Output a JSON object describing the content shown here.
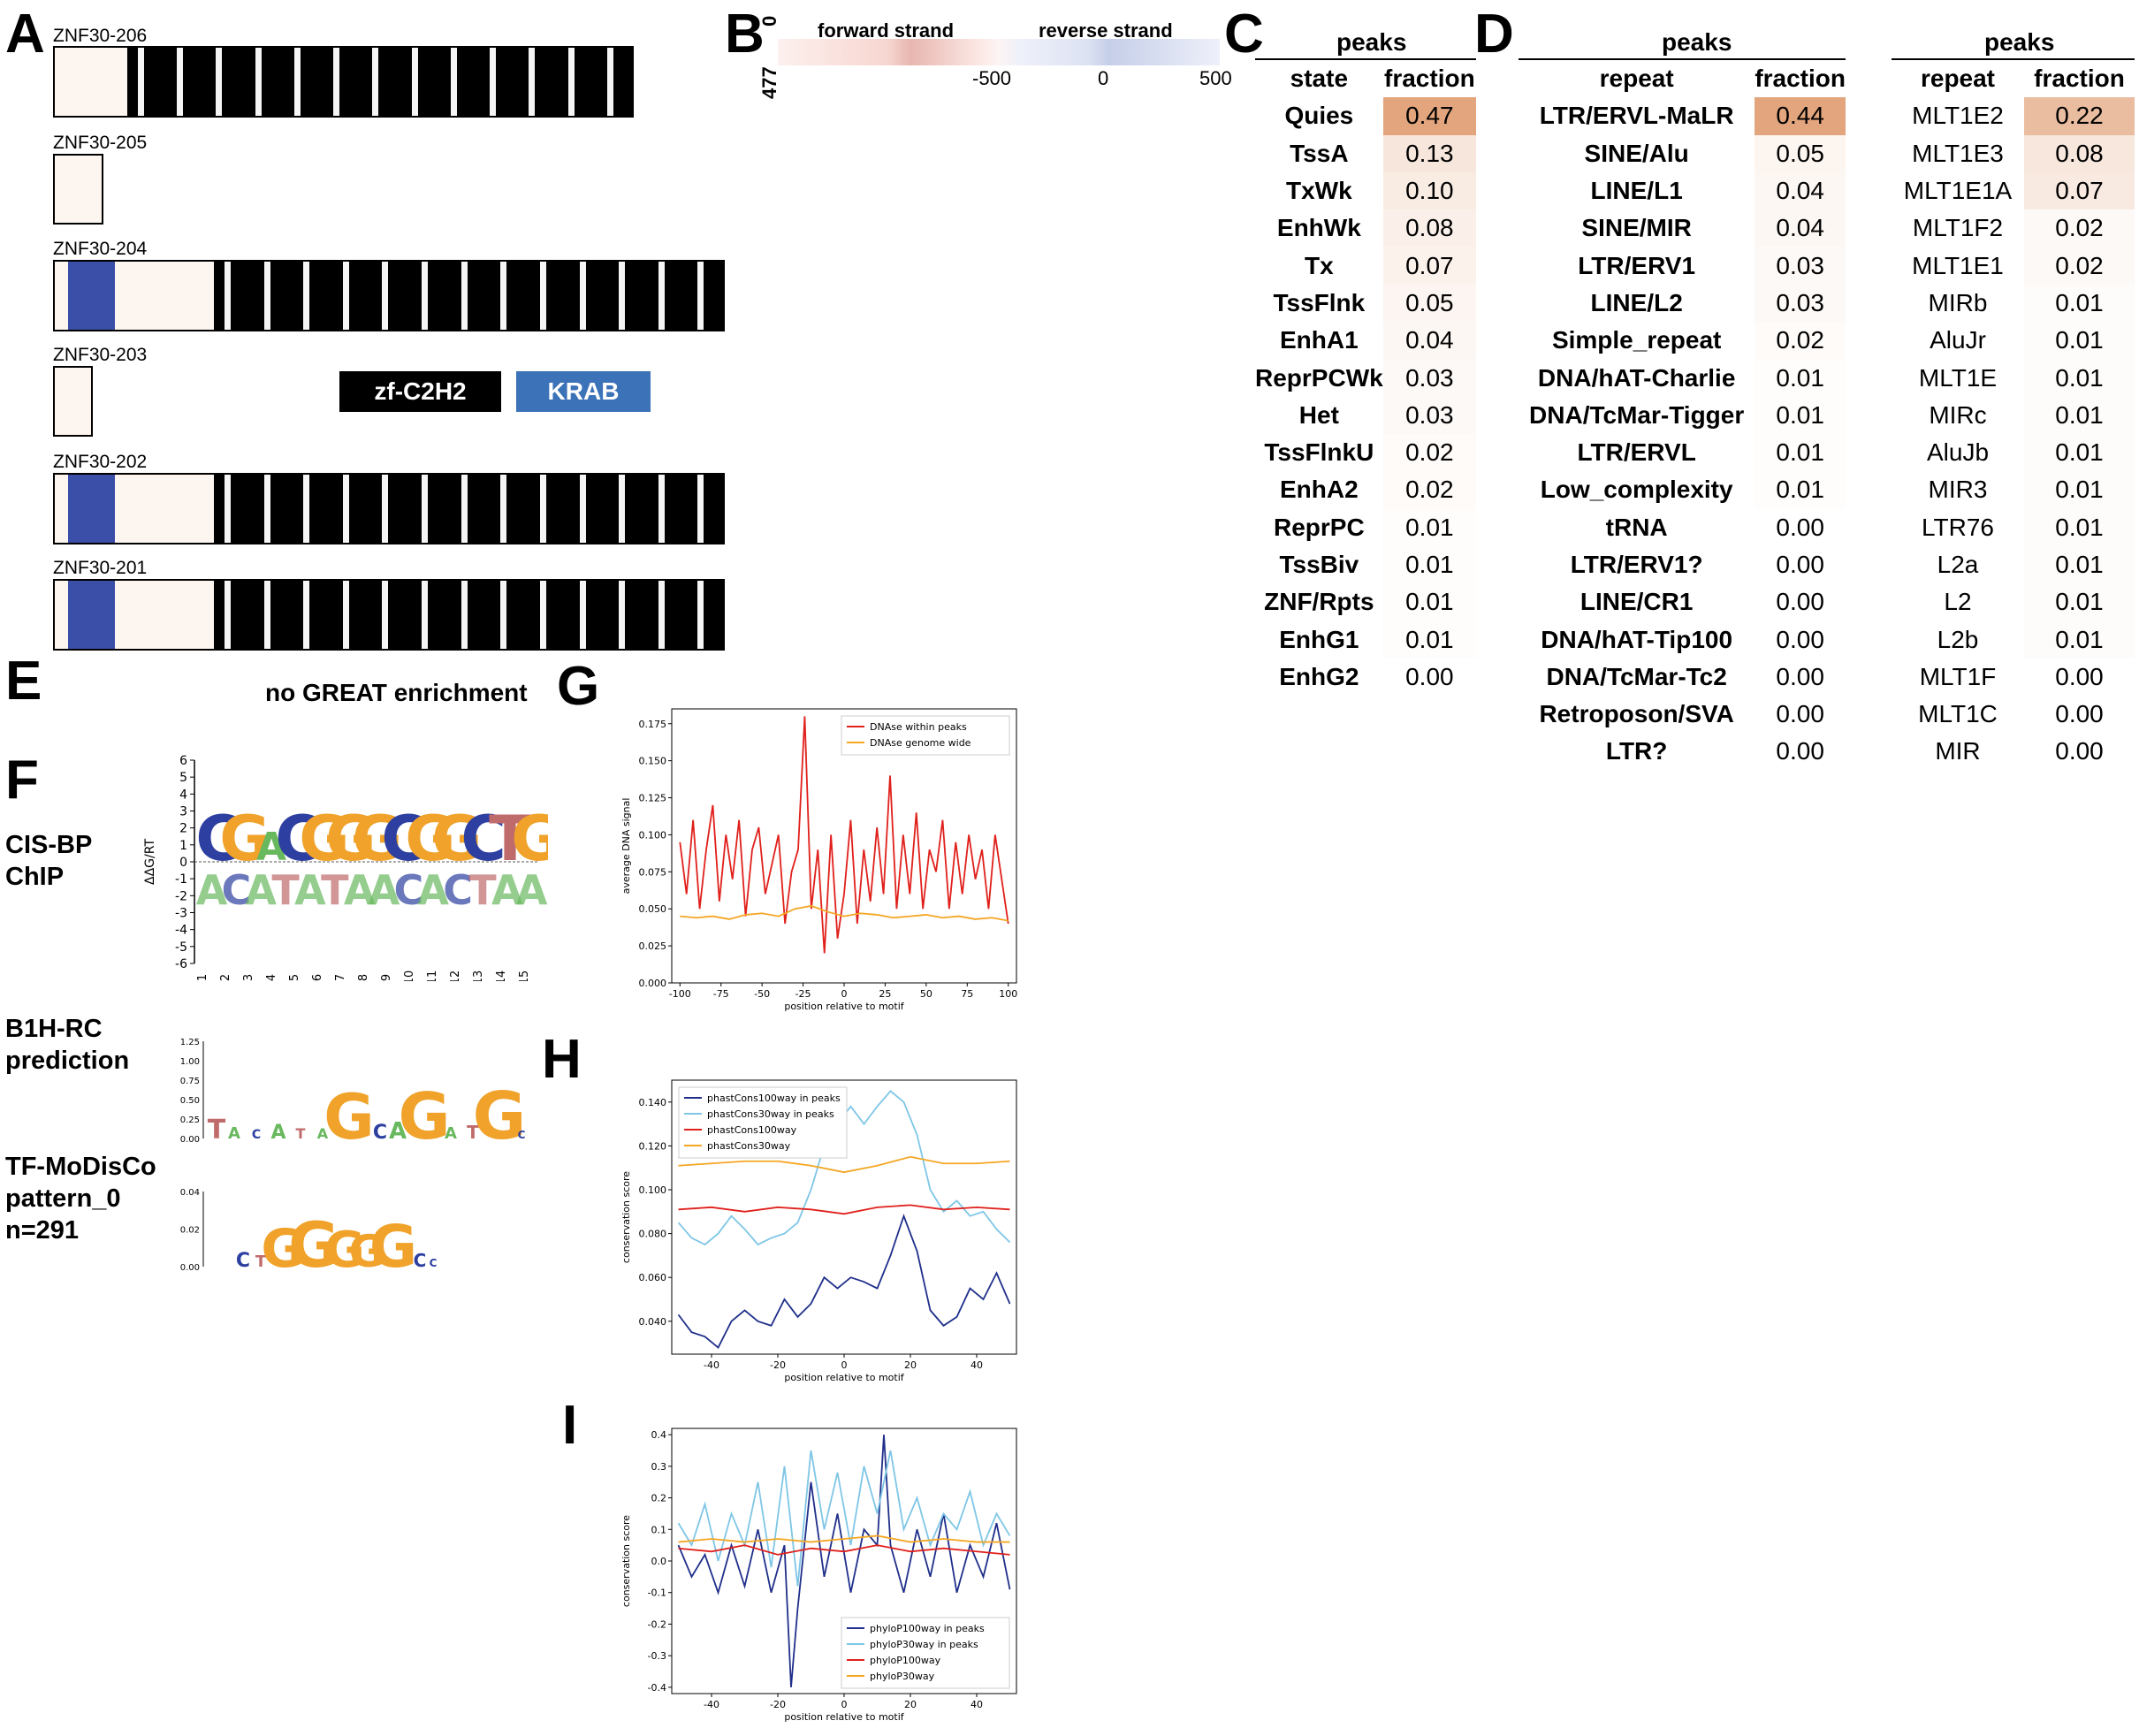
{
  "panel_labels": {
    "A": "A",
    "B": "B",
    "C": "C",
    "D": "D",
    "E": "E",
    "F": "F",
    "G": "G",
    "H": "H",
    "I": "I"
  },
  "isoforms": [
    {
      "name": "ZNF30-206",
      "krab": false,
      "zf_count": 13
    },
    {
      "name": "ZNF30-205",
      "krab": false,
      "zf_count": 0
    },
    {
      "name": "ZNF30-204",
      "krab": true,
      "zf_count": 13
    },
    {
      "name": "ZNF30-203",
      "krab": false,
      "zf_count": 0
    },
    {
      "name": "ZNF30-202",
      "krab": true,
      "zf_count": 13
    },
    {
      "name": "ZNF30-201",
      "krab": true,
      "zf_count": 13
    }
  ],
  "domain_legend": {
    "zf": "zf-C2H2",
    "krab": "KRAB",
    "zf_color": "#000000",
    "krab_color": "#3b72b8"
  },
  "panel_b": {
    "forward": "forward strand",
    "reverse": "reverse strand",
    "y_top": "0",
    "y_bottom": "477",
    "x_ticks": [
      "-500",
      "0",
      "500"
    ]
  },
  "panel_c": {
    "header": "peaks",
    "col_state": "state",
    "col_fraction": "fraction",
    "rows": [
      [
        "Quies",
        "0.47"
      ],
      [
        "TssA",
        "0.13"
      ],
      [
        "TxWk",
        "0.10"
      ],
      [
        "EnhWk",
        "0.08"
      ],
      [
        "Tx",
        "0.07"
      ],
      [
        "TssFlnk",
        "0.05"
      ],
      [
        "EnhA1",
        "0.04"
      ],
      [
        "ReprPCWk",
        "0.03"
      ],
      [
        "Het",
        "0.03"
      ],
      [
        "TssFlnkU",
        "0.02"
      ],
      [
        "EnhA2",
        "0.02"
      ],
      [
        "ReprPC",
        "0.01"
      ],
      [
        "TssBiv",
        "0.01"
      ],
      [
        "ZNF/Rpts",
        "0.01"
      ],
      [
        "EnhG1",
        "0.01"
      ],
      [
        "EnhG2",
        "0.00"
      ]
    ]
  },
  "panel_d1": {
    "header": "peaks",
    "col_repeat": "repeat",
    "col_fraction": "fraction",
    "rows": [
      [
        "LTR/ERVL-MaLR",
        "0.44"
      ],
      [
        "SINE/Alu",
        "0.05"
      ],
      [
        "LINE/L1",
        "0.04"
      ],
      [
        "SINE/MIR",
        "0.04"
      ],
      [
        "LTR/ERV1",
        "0.03"
      ],
      [
        "LINE/L2",
        "0.03"
      ],
      [
        "Simple_repeat",
        "0.02"
      ],
      [
        "DNA/hAT-Charlie",
        "0.01"
      ],
      [
        "DNA/TcMar-Tigger",
        "0.01"
      ],
      [
        "LTR/ERVL",
        "0.01"
      ],
      [
        "Low_complexity",
        "0.01"
      ],
      [
        "tRNA",
        "0.00"
      ],
      [
        "LTR/ERV1?",
        "0.00"
      ],
      [
        "LINE/CR1",
        "0.00"
      ],
      [
        "DNA/hAT-Tip100",
        "0.00"
      ],
      [
        "DNA/TcMar-Tc2",
        "0.00"
      ],
      [
        "Retroposon/SVA",
        "0.00"
      ],
      [
        "LTR?",
        "0.00"
      ]
    ]
  },
  "panel_d2": {
    "header": "peaks",
    "col_repeat": "repeat",
    "col_fraction": "fraction",
    "rows": [
      [
        "MLT1E2",
        "0.22"
      ],
      [
        "MLT1E3",
        "0.08"
      ],
      [
        "MLT1E1A",
        "0.07"
      ],
      [
        "MLT1F2",
        "0.02"
      ],
      [
        "MLT1E1",
        "0.02"
      ],
      [
        "MIRb",
        "0.01"
      ],
      [
        "AluJr",
        "0.01"
      ],
      [
        "MLT1E",
        "0.01"
      ],
      [
        "MIRc",
        "0.01"
      ],
      [
        "AluJb",
        "0.01"
      ],
      [
        "MIR3",
        "0.01"
      ],
      [
        "LTR76",
        "0.01"
      ],
      [
        "L2a",
        "0.01"
      ],
      [
        "L2",
        "0.01"
      ],
      [
        "L2b",
        "0.01"
      ],
      [
        "MLT1F",
        "0.00"
      ],
      [
        "MLT1C",
        "0.00"
      ],
      [
        "MIR",
        "0.00"
      ]
    ]
  },
  "panel_e": {
    "text": "no GREAT enrichment"
  },
  "panel_f": {
    "cisbp_label": [
      "CIS-BP",
      "ChIP"
    ],
    "cisbp_ylabel": "ΔΔG/RT",
    "cisbp_yticks": [
      "6",
      "5",
      "4",
      "3",
      "2",
      "1",
      "0",
      "-1",
      "-2",
      "-3",
      "-4",
      "-5",
      "-6"
    ],
    "cisbp_xticks": [
      "1",
      "2",
      "3",
      "4",
      "5",
      "6",
      "7",
      "8",
      "9",
      "10",
      "11",
      "12",
      "13",
      "14",
      "15"
    ],
    "cisbp_top": [
      "C",
      "G",
      "A",
      "C",
      "G",
      "G",
      "G",
      "C",
      "G",
      "G",
      "C",
      "T",
      "G"
    ],
    "cisbp_bottom": [
      "A",
      "C",
      "A",
      "T",
      "A",
      "T",
      "A",
      "A",
      "C",
      "A",
      "C",
      "T",
      "A",
      "A"
    ],
    "b1h_label": [
      "B1H-RC",
      "prediction"
    ],
    "b1h_yticks": [
      "1.25",
      "1.00",
      "0.75",
      "0.50",
      "0.25",
      "0.00"
    ],
    "modisco_label": [
      "TF-MoDisCo",
      "pattern_0",
      "n=291"
    ],
    "modisco_yticks": [
      "0.04",
      "0.02",
      "0.00"
    ]
  },
  "chart_data": [
    {
      "id": "G",
      "type": "line",
      "xlabel": "position relative to motif",
      "ylabel": "average DNA signal",
      "xlim": [
        -105,
        105
      ],
      "ylim": [
        0,
        0.185
      ],
      "xticks": [
        -100,
        -75,
        -50,
        -25,
        0,
        25,
        50,
        75,
        100
      ],
      "yticks": [
        0.0,
        0.025,
        0.05,
        0.075,
        0.1,
        0.125,
        0.15,
        0.175
      ],
      "legend_position": "top-right",
      "series": [
        {
          "name": "DNAse within peaks",
          "color": "#e0201b",
          "x": [
            -100,
            -96,
            -92,
            -88,
            -84,
            -80,
            -76,
            -72,
            -68,
            -64,
            -60,
            -56,
            -52,
            -48,
            -44,
            -40,
            -36,
            -32,
            -28,
            -24,
            -20,
            -16,
            -12,
            -8,
            -4,
            0,
            4,
            8,
            12,
            16,
            20,
            24,
            28,
            32,
            36,
            40,
            44,
            48,
            52,
            56,
            60,
            64,
            68,
            72,
            76,
            80,
            84,
            88,
            92,
            96,
            100
          ],
          "values": [
            0.095,
            0.06,
            0.11,
            0.05,
            0.09,
            0.12,
            0.055,
            0.1,
            0.07,
            0.11,
            0.045,
            0.09,
            0.105,
            0.06,
            0.08,
            0.1,
            0.04,
            0.075,
            0.09,
            0.18,
            0.05,
            0.09,
            0.02,
            0.1,
            0.03,
            0.06,
            0.11,
            0.04,
            0.09,
            0.055,
            0.105,
            0.06,
            0.14,
            0.05,
            0.1,
            0.06,
            0.115,
            0.05,
            0.09,
            0.075,
            0.11,
            0.05,
            0.095,
            0.06,
            0.1,
            0.07,
            0.09,
            0.05,
            0.1,
            0.07,
            0.04
          ]
        },
        {
          "name": "DNAse genome wide",
          "color": "#f5a623",
          "x": [
            -100,
            -90,
            -80,
            -70,
            -60,
            -50,
            -40,
            -30,
            -20,
            -10,
            0,
            10,
            20,
            30,
            40,
            50,
            60,
            70,
            80,
            90,
            100
          ],
          "values": [
            0.045,
            0.044,
            0.045,
            0.043,
            0.046,
            0.047,
            0.045,
            0.05,
            0.052,
            0.048,
            0.045,
            0.047,
            0.046,
            0.044,
            0.045,
            0.046,
            0.044,
            0.045,
            0.043,
            0.044,
            0.042
          ]
        }
      ]
    },
    {
      "id": "H",
      "type": "line",
      "xlabel": "position relative to motif",
      "ylabel": "conservation score",
      "xlim": [
        -52,
        52
      ],
      "ylim": [
        0.025,
        0.15
      ],
      "xticks": [
        -40,
        -20,
        0,
        20,
        40
      ],
      "yticks": [
        0.04,
        0.06,
        0.08,
        0.1,
        0.12,
        0.14
      ],
      "legend_position": "top-left",
      "series": [
        {
          "name": "phastCons100way in peaks",
          "color": "#1f2f8a",
          "x": [
            -50,
            -46,
            -42,
            -38,
            -34,
            -30,
            -26,
            -22,
            -18,
            -14,
            -10,
            -6,
            -2,
            2,
            6,
            10,
            14,
            18,
            22,
            26,
            30,
            34,
            38,
            42,
            46,
            50
          ],
          "values": [
            0.043,
            0.035,
            0.033,
            0.028,
            0.04,
            0.045,
            0.04,
            0.038,
            0.05,
            0.042,
            0.048,
            0.06,
            0.055,
            0.06,
            0.058,
            0.055,
            0.07,
            0.088,
            0.072,
            0.045,
            0.038,
            0.042,
            0.055,
            0.05,
            0.062,
            0.048
          ]
        },
        {
          "name": "phastCons30way in peaks",
          "color": "#7ec6e6",
          "x": [
            -50,
            -46,
            -42,
            -38,
            -34,
            -30,
            -26,
            -22,
            -18,
            -14,
            -10,
            -6,
            -2,
            2,
            6,
            10,
            14,
            18,
            22,
            26,
            30,
            34,
            38,
            42,
            46,
            50
          ],
          "values": [
            0.085,
            0.078,
            0.075,
            0.08,
            0.088,
            0.082,
            0.075,
            0.078,
            0.08,
            0.085,
            0.1,
            0.12,
            0.13,
            0.138,
            0.13,
            0.138,
            0.145,
            0.14,
            0.125,
            0.1,
            0.09,
            0.095,
            0.088,
            0.09,
            0.082,
            0.076
          ]
        },
        {
          "name": "phastCons100way",
          "color": "#e0201b",
          "x": [
            -50,
            -40,
            -30,
            -20,
            -10,
            0,
            10,
            20,
            30,
            40,
            50
          ],
          "values": [
            0.091,
            0.092,
            0.09,
            0.092,
            0.091,
            0.089,
            0.092,
            0.093,
            0.091,
            0.092,
            0.091
          ]
        },
        {
          "name": "phastCons30way",
          "color": "#f5a623",
          "x": [
            -50,
            -40,
            -30,
            -20,
            -10,
            0,
            10,
            20,
            30,
            40,
            50
          ],
          "values": [
            0.111,
            0.112,
            0.113,
            0.113,
            0.111,
            0.108,
            0.111,
            0.115,
            0.112,
            0.112,
            0.113
          ]
        }
      ]
    },
    {
      "id": "I",
      "type": "line",
      "xlabel": "position relative to motif",
      "ylabel": "conservation score",
      "xlim": [
        -52,
        52
      ],
      "ylim": [
        -0.42,
        0.42
      ],
      "xticks": [
        -40,
        -20,
        0,
        20,
        40
      ],
      "yticks": [
        -0.4,
        -0.3,
        -0.2,
        -0.1,
        0.0,
        0.1,
        0.2,
        0.3,
        0.4
      ],
      "legend_position": "bottom-right",
      "series": [
        {
          "name": "phyloP100way in peaks",
          "color": "#1f2f8a",
          "x": [
            -50,
            -46,
            -42,
            -38,
            -34,
            -30,
            -26,
            -22,
            -18,
            -16,
            -14,
            -12,
            -10,
            -6,
            -2,
            2,
            6,
            10,
            12,
            14,
            18,
            22,
            26,
            30,
            34,
            38,
            42,
            46,
            50
          ],
          "values": [
            0.05,
            -0.05,
            0.02,
            -0.1,
            0.05,
            -0.08,
            0.1,
            -0.1,
            0.05,
            -0.4,
            -0.15,
            0.05,
            0.25,
            -0.05,
            0.15,
            -0.1,
            0.1,
            0.05,
            0.4,
            0.05,
            -0.1,
            0.1,
            -0.05,
            0.15,
            -0.1,
            0.05,
            -0.05,
            0.12,
            -0.09
          ]
        },
        {
          "name": "phyloP30way in peaks",
          "color": "#7ec6e6",
          "x": [
            -50,
            -46,
            -42,
            -38,
            -34,
            -30,
            -26,
            -22,
            -18,
            -14,
            -10,
            -6,
            -2,
            2,
            6,
            10,
            14,
            18,
            22,
            26,
            30,
            34,
            38,
            42,
            46,
            50
          ],
          "values": [
            0.12,
            0.05,
            0.18,
            0.0,
            0.15,
            0.05,
            0.25,
            -0.02,
            0.3,
            -0.08,
            0.35,
            0.1,
            0.28,
            0.05,
            0.3,
            0.15,
            0.35,
            0.1,
            0.2,
            0.05,
            0.15,
            0.1,
            0.22,
            0.05,
            0.15,
            0.08
          ]
        },
        {
          "name": "phyloP100way",
          "color": "#e0201b",
          "x": [
            -50,
            -40,
            -30,
            -20,
            -10,
            0,
            10,
            20,
            30,
            40,
            50
          ],
          "values": [
            0.04,
            0.03,
            0.05,
            0.02,
            0.04,
            0.03,
            0.05,
            0.03,
            0.04,
            0.03,
            0.02
          ]
        },
        {
          "name": "phyloP30way",
          "color": "#f5a623",
          "x": [
            -50,
            -40,
            -30,
            -20,
            -10,
            0,
            10,
            20,
            30,
            40,
            50
          ],
          "values": [
            0.06,
            0.07,
            0.06,
            0.07,
            0.06,
            0.07,
            0.08,
            0.06,
            0.07,
            0.06,
            0.06
          ]
        }
      ]
    }
  ]
}
